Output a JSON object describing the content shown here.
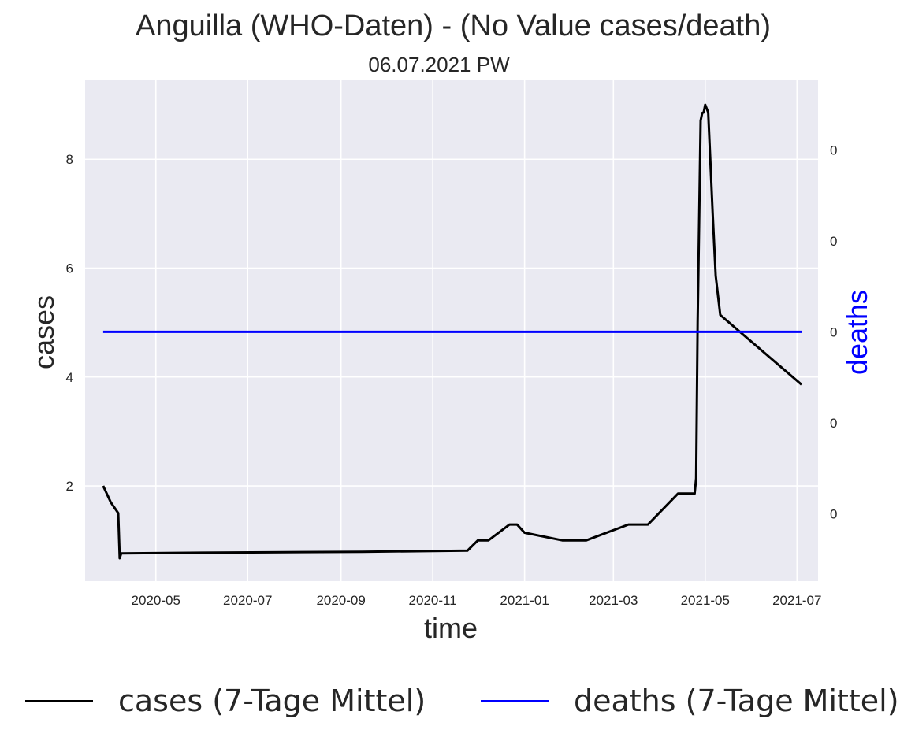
{
  "chart_data": {
    "type": "line",
    "title": "Anguilla (WHO-Daten) - (No Value cases/death)",
    "subtitle": "06.07.2021 PW",
    "xlabel": "time",
    "ylabel": "cases",
    "y2label": "deaths",
    "x_ticks": [
      "2020-05",
      "2020-07",
      "2020-09",
      "2020-11",
      "2021-01",
      "2021-03",
      "2021-05",
      "2021-07"
    ],
    "y_ticks": [
      2,
      4,
      6,
      8
    ],
    "y2_tick_labels": [
      "0",
      "0",
      "0",
      "0",
      "0"
    ],
    "ylim": [
      0.25,
      9.45
    ],
    "grid": true,
    "legend_position": "bottom",
    "colors": {
      "cases": "#000000",
      "deaths": "#0000ff",
      "background": "#eaeaf2",
      "grid": "#ffffff"
    },
    "series": [
      {
        "name": "cases (7-Tage Mittel)",
        "axis": "left",
        "points": [
          {
            "x": "2020-03-27",
            "y": 2.0
          },
          {
            "x": "2020-04-01",
            "y": 1.7
          },
          {
            "x": "2020-04-06",
            "y": 1.5
          },
          {
            "x": "2020-04-07",
            "y": 0.67
          },
          {
            "x": "2020-04-08",
            "y": 0.76
          },
          {
            "x": "2020-05-15",
            "y": 0.77
          },
          {
            "x": "2020-07-15",
            "y": 0.78
          },
          {
            "x": "2020-09-15",
            "y": 0.79
          },
          {
            "x": "2020-11-24",
            "y": 0.81
          },
          {
            "x": "2020-12-01",
            "y": 1.0
          },
          {
            "x": "2020-12-08",
            "y": 1.0
          },
          {
            "x": "2020-12-22",
            "y": 1.29
          },
          {
            "x": "2020-12-27",
            "y": 1.29
          },
          {
            "x": "2021-01-01",
            "y": 1.14
          },
          {
            "x": "2021-01-26",
            "y": 1.0
          },
          {
            "x": "2021-02-11",
            "y": 1.0
          },
          {
            "x": "2021-03-11",
            "y": 1.29
          },
          {
            "x": "2021-03-24",
            "y": 1.29
          },
          {
            "x": "2021-04-13",
            "y": 1.86
          },
          {
            "x": "2021-04-24",
            "y": 1.86
          },
          {
            "x": "2021-04-25",
            "y": 2.14
          },
          {
            "x": "2021-04-26",
            "y": 5.0
          },
          {
            "x": "2021-04-28",
            "y": 8.71
          },
          {
            "x": "2021-04-29",
            "y": 8.85
          },
          {
            "x": "2021-04-30",
            "y": 8.86
          },
          {
            "x": "2021-05-01",
            "y": 9.0
          },
          {
            "x": "2021-05-03",
            "y": 8.86
          },
          {
            "x": "2021-05-06",
            "y": 7.0
          },
          {
            "x": "2021-05-08",
            "y": 5.86
          },
          {
            "x": "2021-05-11",
            "y": 5.14
          },
          {
            "x": "2021-07-04",
            "y": 3.86
          }
        ]
      },
      {
        "name": "deaths (7-Tage Mittel)",
        "axis": "right",
        "points": [
          {
            "x": "2020-03-27",
            "y": 0
          },
          {
            "x": "2021-07-04",
            "y": 0
          }
        ]
      }
    ]
  }
}
